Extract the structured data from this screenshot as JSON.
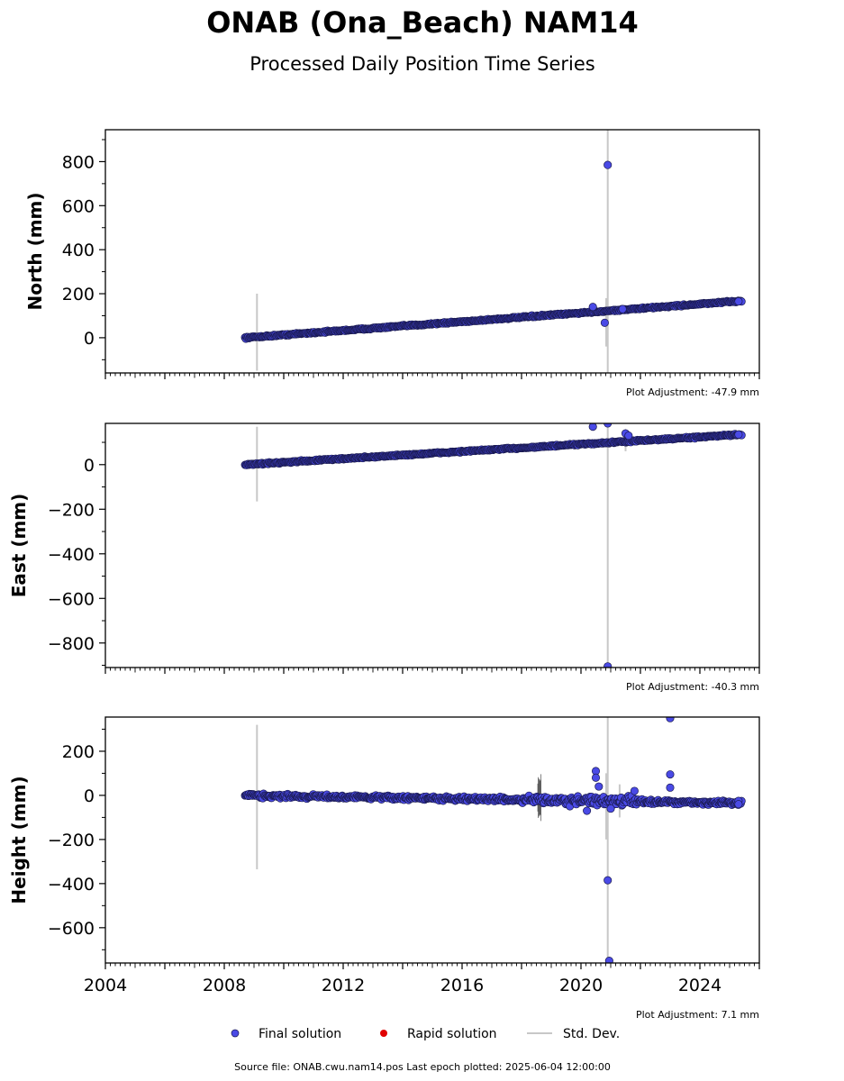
{
  "title": "ONAB (Ona_Beach) NAM14",
  "subtitle": "Processed Daily Position Time Series",
  "footer": "Source file: ONAB.cwu.nam14.pos  Last epoch plotted: 2025-06-04 12:00:00",
  "legend": {
    "final": "Final solution",
    "rapid": "Rapid solution",
    "stddev": "Std. Dev."
  },
  "colors": {
    "final": "#4a4ae6",
    "final_edge": "#1a1a50",
    "rapid": "#e00000",
    "stddev": "#c8c8c8"
  },
  "chart_data": [
    {
      "type": "scatter",
      "panel": "north",
      "ylabel": "North (mm)",
      "adjustment": "Plot Adjustment: -47.9 mm",
      "xlim": [
        2004,
        2026
      ],
      "ylim": [
        -160,
        945
      ],
      "yticks": [
        0,
        200,
        400,
        600,
        800
      ],
      "ytick_labels": [
        "0",
        "200",
        "400",
        "600",
        "800"
      ],
      "trend": {
        "start": [
          2008.7,
          0
        ],
        "end": [
          2025.4,
          167
        ],
        "noise": 4
      },
      "outliers": [
        {
          "x": 2020.9,
          "y": 785
        },
        {
          "x": 2020.8,
          "y": 68
        },
        {
          "x": 2020.4,
          "y": 140
        },
        {
          "x": 2021.4,
          "y": 130
        },
        {
          "x": 2025.3,
          "y": 165
        }
      ],
      "stddev_bars": [
        {
          "x": 2009.1,
          "lo": -150,
          "hi": 200
        },
        {
          "x": 2020.9,
          "lo": -160,
          "hi": 945
        },
        {
          "x": 2020.85,
          "lo": -40,
          "hi": 180
        }
      ]
    },
    {
      "type": "scatter",
      "panel": "east",
      "ylabel": "East (mm)",
      "adjustment": "Plot Adjustment: -40.3 mm",
      "xlim": [
        2004,
        2026
      ],
      "ylim": [
        -910,
        185
      ],
      "yticks": [
        -800,
        -600,
        -400,
        -200,
        0
      ],
      "ytick_labels": [
        "−800",
        "−600",
        "−400",
        "−200",
        "0"
      ],
      "trend": {
        "start": [
          2008.7,
          0
        ],
        "end": [
          2025.4,
          135
        ],
        "noise": 4
      },
      "outliers": [
        {
          "x": 2020.4,
          "y": 170
        },
        {
          "x": 2020.9,
          "y": 185
        },
        {
          "x": 2020.9,
          "y": -905
        },
        {
          "x": 2021.5,
          "y": 140
        },
        {
          "x": 2021.6,
          "y": 130
        },
        {
          "x": 2025.3,
          "y": 135
        }
      ],
      "stddev_bars": [
        {
          "x": 2009.1,
          "lo": -165,
          "hi": 170
        },
        {
          "x": 2020.9,
          "lo": -910,
          "hi": 185
        },
        {
          "x": 2021.5,
          "lo": 60,
          "hi": 160
        }
      ]
    },
    {
      "type": "scatter",
      "panel": "height",
      "ylabel": "Height (mm)",
      "adjustment": "Plot Adjustment: 7.1 mm",
      "xlim": [
        2004,
        2026
      ],
      "ylim": [
        -760,
        355
      ],
      "yticks": [
        -600,
        -400,
        -200,
        0,
        200
      ],
      "ytick_labels": [
        "−600",
        "−400",
        "−200",
        "0",
        "200"
      ],
      "xticks": [
        2004,
        2008,
        2012,
        2016,
        2020,
        2024
      ],
      "xtick_labels": [
        "2004",
        "2008",
        "2012",
        "2016",
        "2020",
        "2024"
      ],
      "trend": {
        "start": [
          2008.7,
          0
        ],
        "end": [
          2025.4,
          -35
        ],
        "noise": 10
      },
      "outliers": [
        {
          "x": 2020.2,
          "y": -70
        },
        {
          "x": 2020.5,
          "y": 110
        },
        {
          "x": 2020.5,
          "y": 80
        },
        {
          "x": 2020.6,
          "y": 40
        },
        {
          "x": 2020.9,
          "y": -385
        },
        {
          "x": 2020.95,
          "y": -750
        },
        {
          "x": 2021.0,
          "y": -60
        },
        {
          "x": 2021.8,
          "y": 20
        },
        {
          "x": 2023.0,
          "y": 350
        },
        {
          "x": 2023.0,
          "y": 95
        },
        {
          "x": 2023.0,
          "y": 35
        },
        {
          "x": 2025.3,
          "y": -25
        },
        {
          "x": 2025.3,
          "y": -40
        }
      ],
      "stddev_bars": [
        {
          "x": 2009.1,
          "lo": -335,
          "hi": 320
        },
        {
          "x": 2020.9,
          "lo": -760,
          "hi": 355
        },
        {
          "x": 2020.85,
          "lo": -200,
          "hi": 100
        },
        {
          "x": 2021.3,
          "lo": -100,
          "hi": 50
        }
      ],
      "dark_bars": [
        {
          "x": 2018.6,
          "lo": -120,
          "hi": 100
        }
      ]
    }
  ]
}
